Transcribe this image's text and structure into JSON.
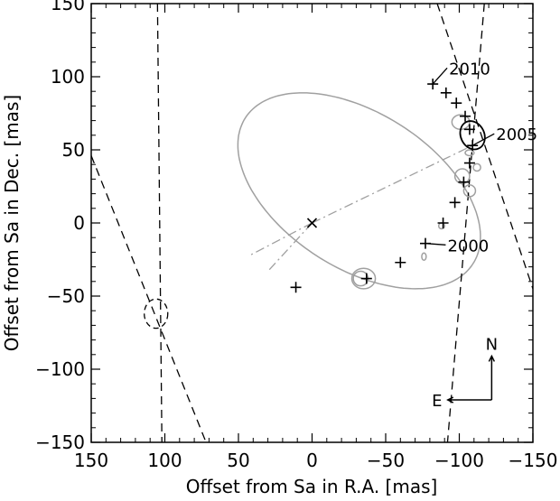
{
  "chart_data": {
    "type": "scatter",
    "title": "",
    "xlabel": "Offset from Sa in R.A. [mas]",
    "ylabel": "Offset from Sa in Dec. [mas]",
    "xlim": [
      150,
      -150
    ],
    "ylim": [
      -150,
      150
    ],
    "x_reversed": true,
    "xticks": [
      150,
      100,
      50,
      0,
      -50,
      -100,
      -150
    ],
    "yticks": [
      -150,
      -100,
      -50,
      0,
      50,
      100,
      150
    ],
    "grid": false,
    "orbit": {
      "center_ra": -32,
      "center_dec": 22,
      "semi_major": 92,
      "semi_minor": 53,
      "angle_deg": 33,
      "color": "#a0a0a0"
    },
    "primary_position": {
      "ra": 0,
      "dec": 0,
      "marker": "x"
    },
    "predicted_positions": [
      {
        "ra": 11,
        "dec": -44
      },
      {
        "ra": -37,
        "dec": -38
      },
      {
        "ra": -60,
        "dec": -27
      },
      {
        "ra": -77,
        "dec": -14
      },
      {
        "ra": -89,
        "dec": 0
      },
      {
        "ra": -97,
        "dec": 14
      },
      {
        "ra": -103,
        "dec": 28
      },
      {
        "ra": -107,
        "dec": 41
      },
      {
        "ra": -109,
        "dec": 53
      },
      {
        "ra": -107,
        "dec": 64
      },
      {
        "ra": -104,
        "dec": 73
      },
      {
        "ra": -98,
        "dec": 82
      },
      {
        "ra": -91,
        "dec": 89
      },
      {
        "ra": -82,
        "dec": 95
      }
    ],
    "error_ellipses": [
      {
        "ra": -35,
        "dec": -38,
        "rx": 8,
        "ry": 7
      },
      {
        "ra": -33,
        "dec": -38,
        "rx": 5,
        "ry": 5
      },
      {
        "ra": -76,
        "dec": -23,
        "rx": 1.5,
        "ry": 2.5
      },
      {
        "ra": -88,
        "dec": -2,
        "rx": 2,
        "ry": 2
      },
      {
        "ra": -102,
        "dec": 32,
        "rx": 5,
        "ry": 5
      },
      {
        "ra": -107,
        "dec": 22,
        "rx": 4,
        "ry": 4
      },
      {
        "ra": -112,
        "dec": 38,
        "rx": 2.5,
        "ry": 2.5
      },
      {
        "ra": -107,
        "dec": 48,
        "rx": 3,
        "ry": 2
      },
      {
        "ra": -101,
        "dec": 69,
        "rx": 6,
        "ry": 5
      }
    ],
    "highlight_ellipse": {
      "ra": -109,
      "dec": 60,
      "rx": 8,
      "ry": 10,
      "angle_deg": -25
    },
    "dashed_circle": {
      "ra": 106,
      "dec": -62,
      "r": 8
    },
    "annotations": [
      {
        "text": "2010",
        "label_ra": -93,
        "label_dec": 106,
        "point_ra": -82,
        "point_dec": 95
      },
      {
        "text": "2005",
        "label_ra": -125,
        "label_dec": 61,
        "point_ra": -109,
        "point_dec": 53
      },
      {
        "text": "2000",
        "label_ra": -92,
        "label_dec": -15,
        "point_ra": -77,
        "point_dec": -14
      }
    ],
    "dashed_lines": [
      {
        "from": [
          105,
          150
        ],
        "to": [
          102,
          -150
        ]
      },
      {
        "from": [
          150,
          46
        ],
        "to": [
          72,
          -150
        ]
      },
      {
        "from": [
          -117,
          150
        ],
        "to": [
          -92,
          -150
        ]
      },
      {
        "from": [
          -85,
          150
        ],
        "to": [
          -150,
          -45
        ]
      }
    ],
    "dash_dot_lines": [
      {
        "from": [
          0,
          0
        ],
        "to": [
          -109,
          53
        ]
      },
      {
        "from": [
          0,
          0
        ],
        "to": [
          42,
          -22
        ]
      },
      {
        "from": [
          0,
          0
        ],
        "to": [
          30,
          -33
        ]
      }
    ],
    "compass": {
      "north_label": "N",
      "east_label": "E",
      "origin_ra": -122,
      "origin_dec": -121,
      "length": 30
    }
  }
}
